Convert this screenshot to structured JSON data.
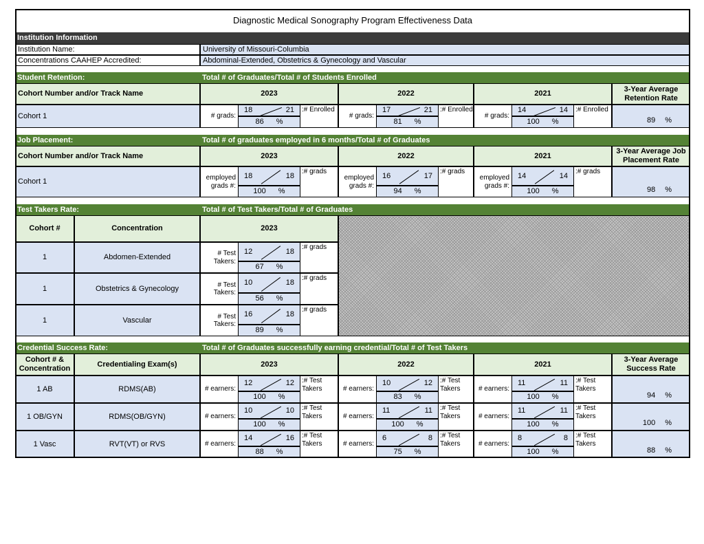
{
  "title": "Diagnostic Medical Sonography Program Effectiveness Data",
  "institution": {
    "header": "Institution Information",
    "name_label": "Institution Name:",
    "name_value": "University of Missouri-Columbia",
    "conc_label": "Concentrations CAAHEP Accredited:",
    "conc_value": "Abdominal-Extended, Obstetrics & Gynecology and Vascular"
  },
  "colors": {
    "green": "#548235",
    "light_green": "#e2efda",
    "light_blue": "#dae3f3",
    "dark": "#3b3b3b"
  },
  "years": [
    "2023",
    "2022",
    "2021"
  ],
  "retention": {
    "section": "Student Retention:",
    "desc": "Total # of Graduates/Total # of Students Enrolled",
    "col_label": "Cohort Number and/or Track Name",
    "avg_label": "3-Year Average Retention Rate",
    "left": "# grads:",
    "right": ":# Enrolled",
    "rows": [
      {
        "name": "Cohort 1",
        "years": [
          {
            "a": "18",
            "b": "21",
            "pct": "86"
          },
          {
            "a": "17",
            "b": "21",
            "pct": "81"
          },
          {
            "a": "14",
            "b": "14",
            "pct": "100"
          }
        ],
        "avg": "89"
      }
    ]
  },
  "placement": {
    "section": "Job Placement:",
    "desc": "Total # of graduates employed in 6 months/Total # of Graduates",
    "col_label": "Cohort Number and/or Track Name",
    "avg_label": "3-Year Average Job Placement Rate",
    "left": "employed grads #:",
    "right": ":# grads",
    "rows": [
      {
        "name": "Cohort 1",
        "years": [
          {
            "a": "18",
            "b": "18",
            "pct": "100"
          },
          {
            "a": "16",
            "b": "17",
            "pct": "94"
          },
          {
            "a": "14",
            "b": "14",
            "pct": "100"
          }
        ],
        "avg": "98"
      }
    ]
  },
  "test_takers": {
    "section": "Test Takers Rate:",
    "desc": "Total # of Test Takers/Total # of Graduates",
    "col1": "Cohort #",
    "col2": "Concentration",
    "left": "# Test Takers:",
    "right": ":# grads",
    "rows": [
      {
        "cohort": "1",
        "conc": "Abdomen-Extended",
        "years": [
          {
            "a": "12",
            "b": "18",
            "pct": "67"
          }
        ]
      },
      {
        "cohort": "1",
        "conc": "Obstetrics & Gynecology",
        "years": [
          {
            "a": "10",
            "b": "18",
            "pct": "56"
          }
        ]
      },
      {
        "cohort": "1",
        "conc": "Vascular",
        "years": [
          {
            "a": "16",
            "b": "18",
            "pct": "89"
          }
        ]
      }
    ]
  },
  "credential": {
    "section": "Credential Success Rate:",
    "desc": "Total # of Graduates successfully earning credential/Total # of Test Takers",
    "col1": "Cohort # & Concentration",
    "col2": "Credentialing Exam(s)",
    "avg_label": "3-Year Average Success Rate",
    "left": "# earners:",
    "right": ":# Test Takers",
    "rows": [
      {
        "cohort": "1 AB",
        "exam": "RDMS(AB)",
        "years": [
          {
            "a": "12",
            "b": "12",
            "pct": "100"
          },
          {
            "a": "10",
            "b": "12",
            "pct": "83"
          },
          {
            "a": "11",
            "b": "11",
            "pct": "100"
          }
        ],
        "avg": "94"
      },
      {
        "cohort": "1 OB/GYN",
        "exam": "RDMS(OB/GYN)",
        "years": [
          {
            "a": "10",
            "b": "10",
            "pct": "100"
          },
          {
            "a": "11",
            "b": "11",
            "pct": "100"
          },
          {
            "a": "11",
            "b": "11",
            "pct": "100"
          }
        ],
        "avg": "100"
      },
      {
        "cohort": "1 Vasc",
        "exam": "RVT(VT) or RVS",
        "years": [
          {
            "a": "14",
            "b": "16",
            "pct": "88"
          },
          {
            "a": "6",
            "b": "8",
            "pct": "75"
          },
          {
            "a": "8",
            "b": "8",
            "pct": "100"
          }
        ],
        "avg": "88"
      }
    ]
  },
  "percent_sign": "%"
}
